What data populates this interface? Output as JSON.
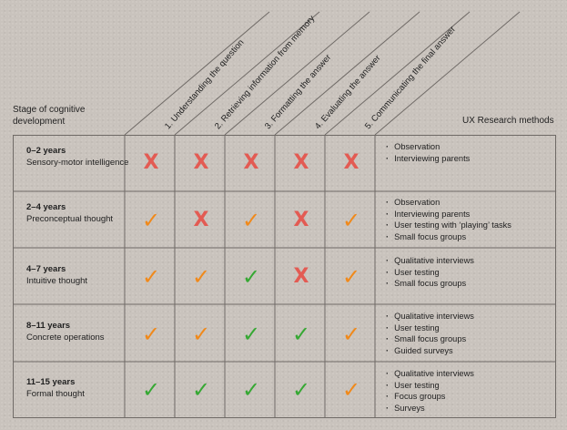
{
  "header": {
    "stage_title": "Stage of cognitive development",
    "ux_title": "UX Research methods",
    "columns": [
      "1. Understanding the question",
      "2. Retrieving information from memory",
      "3. Formatting the answer",
      "4. Evaluating the answer",
      "5. Communicating the final answer"
    ]
  },
  "rows": [
    {
      "age": "0–2 years",
      "stage": "Sensory-motor intelligence",
      "marks": [
        "x",
        "x",
        "x",
        "x",
        "x"
      ],
      "methods": [
        "Observation",
        "Interviewing parents"
      ]
    },
    {
      "age": "2–4 years",
      "stage": "Preconceptual thought",
      "marks": [
        "check-orange",
        "x",
        "check-orange",
        "x",
        "check-orange"
      ],
      "methods": [
        "Observation",
        "Interviewing parents",
        "User testing with ‘playing’ tasks",
        "Small focus groups"
      ]
    },
    {
      "age": "4–7 years",
      "stage": "Intuitive thought",
      "marks": [
        "check-orange",
        "check-orange",
        "check-green",
        "x",
        "check-orange"
      ],
      "methods": [
        "Qualitative interviews",
        "User testing",
        "Small focus groups"
      ]
    },
    {
      "age": "8–11 years",
      "stage": "Concrete operations",
      "marks": [
        "check-orange",
        "check-orange",
        "check-green",
        "check-green",
        "check-orange"
      ],
      "methods": [
        "Qualitative interviews",
        "User testing",
        "Small focus groups",
        "Guided surveys"
      ]
    },
    {
      "age": "11–15 years",
      "stage": "Formal thought",
      "marks": [
        "check-green",
        "check-green",
        "check-green",
        "check-green",
        "check-orange"
      ],
      "methods": [
        "Qualitative interviews",
        "User testing",
        "Focus groups",
        "Surveys"
      ]
    }
  ],
  "legend": {
    "x_symbol": "X",
    "check_symbol": "✓",
    "colors": {
      "x": "#e35b53",
      "check_orange": "#f0891a",
      "check_green": "#36a833"
    }
  }
}
